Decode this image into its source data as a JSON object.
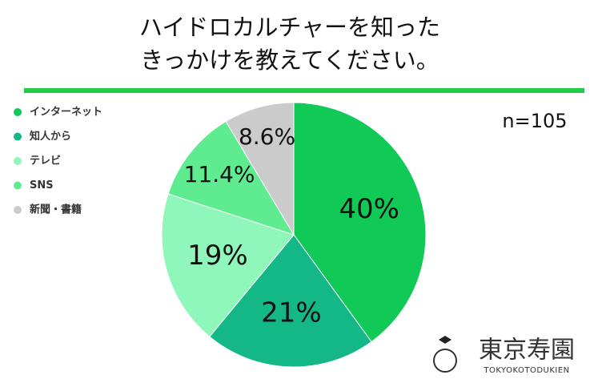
{
  "chart_data": {
    "type": "pie",
    "title": [
      "ハイドロカルチャーを知った",
      "きっかけを教えてください。"
    ],
    "annotation": "n=105",
    "categories": [
      "インターネット",
      "知人から",
      "テレビ",
      "SNS",
      "新聞・書籍"
    ],
    "values": [
      40,
      21,
      19,
      11.4,
      8.6
    ],
    "value_labels": [
      "40%",
      "21%",
      "19%",
      "11.4%",
      "8.6%"
    ],
    "colors": [
      "#11c956",
      "#13b886",
      "#8ff7b9",
      "#5feb8f",
      "#cbcbcb"
    ],
    "legend": "upper left"
  },
  "logo": {
    "name": "東京寿園",
    "subtitle": "TOKYOKOTODUKIEN"
  }
}
